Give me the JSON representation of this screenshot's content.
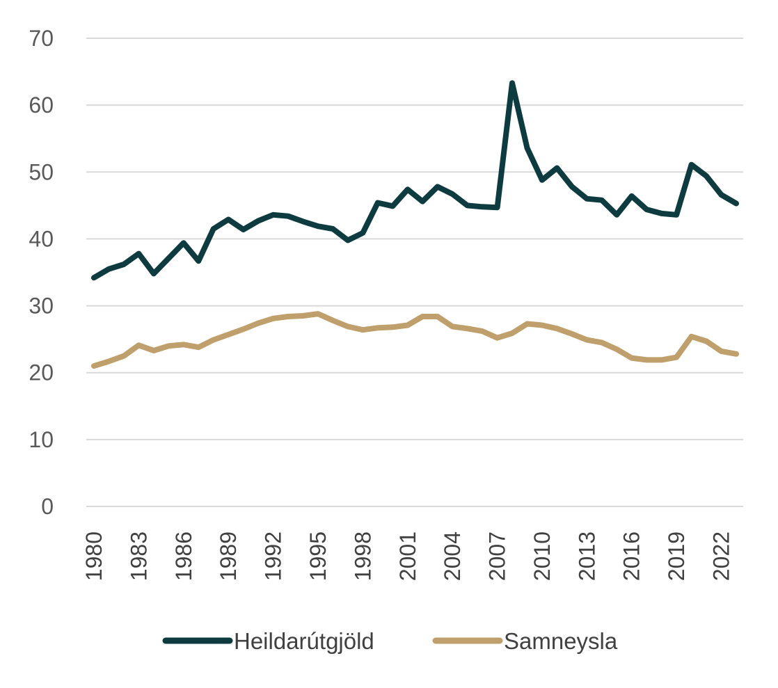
{
  "chart_data": {
    "type": "line",
    "title": "",
    "xlabel": "",
    "ylabel": "",
    "ylim": [
      0,
      70
    ],
    "yticks": [
      0,
      10,
      20,
      30,
      40,
      50,
      60,
      70
    ],
    "grid": true,
    "legend_position": "bottom",
    "x": [
      1980,
      1981,
      1982,
      1983,
      1984,
      1985,
      1986,
      1987,
      1988,
      1989,
      1990,
      1991,
      1992,
      1993,
      1994,
      1995,
      1996,
      1997,
      1998,
      1999,
      2000,
      2001,
      2002,
      2003,
      2004,
      2005,
      2006,
      2007,
      2008,
      2009,
      2010,
      2011,
      2012,
      2013,
      2014,
      2015,
      2016,
      2017,
      2018,
      2019,
      2020,
      2021,
      2022,
      2023
    ],
    "x_tick_labels": [
      "1980",
      "1983",
      "1986",
      "1989",
      "1992",
      "1995",
      "1998",
      "2001",
      "2004",
      "2007",
      "2010",
      "2013",
      "2016",
      "2019",
      "2022"
    ],
    "series": [
      {
        "name": "Heildarútgjöld",
        "color": "#0d3b40",
        "values": [
          34.2,
          35.5,
          36.2,
          37.8,
          34.8,
          37.1,
          39.4,
          36.7,
          41.5,
          42.9,
          41.4,
          42.7,
          43.6,
          43.4,
          42.6,
          41.9,
          41.5,
          39.8,
          40.9,
          45.4,
          44.9,
          47.4,
          45.6,
          47.8,
          46.7,
          45.0,
          44.8,
          44.7,
          63.3,
          53.6,
          48.8,
          50.6,
          47.8,
          46.0,
          45.8,
          43.6,
          46.4,
          44.4,
          43.8,
          43.6,
          51.1,
          49.4,
          46.6,
          45.3
        ]
      },
      {
        "name": "Samneysla",
        "color": "#bf9f6b",
        "values": [
          21.0,
          21.7,
          22.5,
          24.1,
          23.3,
          24.0,
          24.2,
          23.8,
          24.9,
          25.7,
          26.5,
          27.4,
          28.1,
          28.4,
          28.5,
          28.8,
          27.8,
          26.9,
          26.4,
          26.7,
          26.8,
          27.1,
          28.4,
          28.4,
          26.9,
          26.6,
          26.2,
          25.2,
          25.9,
          27.3,
          27.1,
          26.6,
          25.8,
          24.9,
          24.5,
          23.5,
          22.2,
          21.9,
          21.9,
          22.3,
          25.4,
          24.7,
          23.2,
          22.8
        ]
      }
    ]
  }
}
